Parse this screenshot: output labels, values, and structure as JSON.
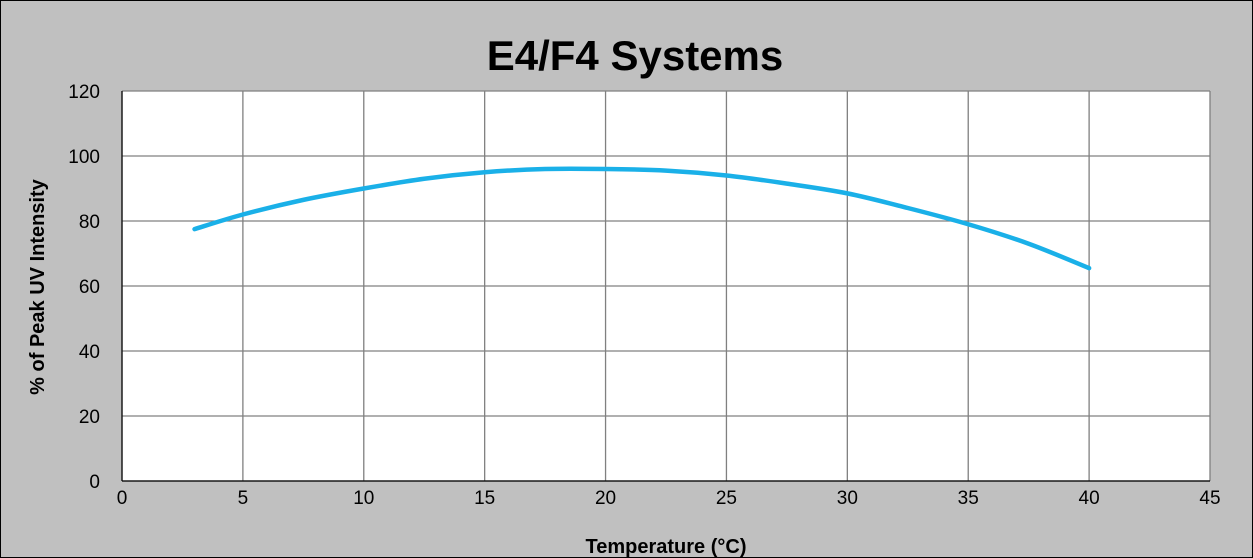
{
  "chart_data": {
    "type": "line",
    "title": "E4/F4 Systems",
    "xlabel": "Temperature (°C)",
    "ylabel": "% of Peak UV Intensity",
    "xlim": [
      0,
      45
    ],
    "ylim": [
      0,
      120
    ],
    "xticks": [
      0,
      5,
      10,
      15,
      20,
      25,
      30,
      35,
      40,
      45
    ],
    "yticks": [
      0,
      20,
      40,
      60,
      80,
      100,
      120
    ],
    "grid": true,
    "legend": "none",
    "series": [
      {
        "color": "#1ab0e8",
        "x": [
          3,
          5,
          7.5,
          10,
          12.5,
          15,
          17.5,
          20,
          22.5,
          25,
          27.5,
          30,
          32.5,
          35,
          37.5,
          40
        ],
        "y": [
          77.5,
          82,
          86.5,
          90,
          93,
          95,
          96,
          96,
          95.5,
          94,
          91.5,
          88.5,
          84,
          79,
          73,
          65.5
        ]
      }
    ]
  }
}
